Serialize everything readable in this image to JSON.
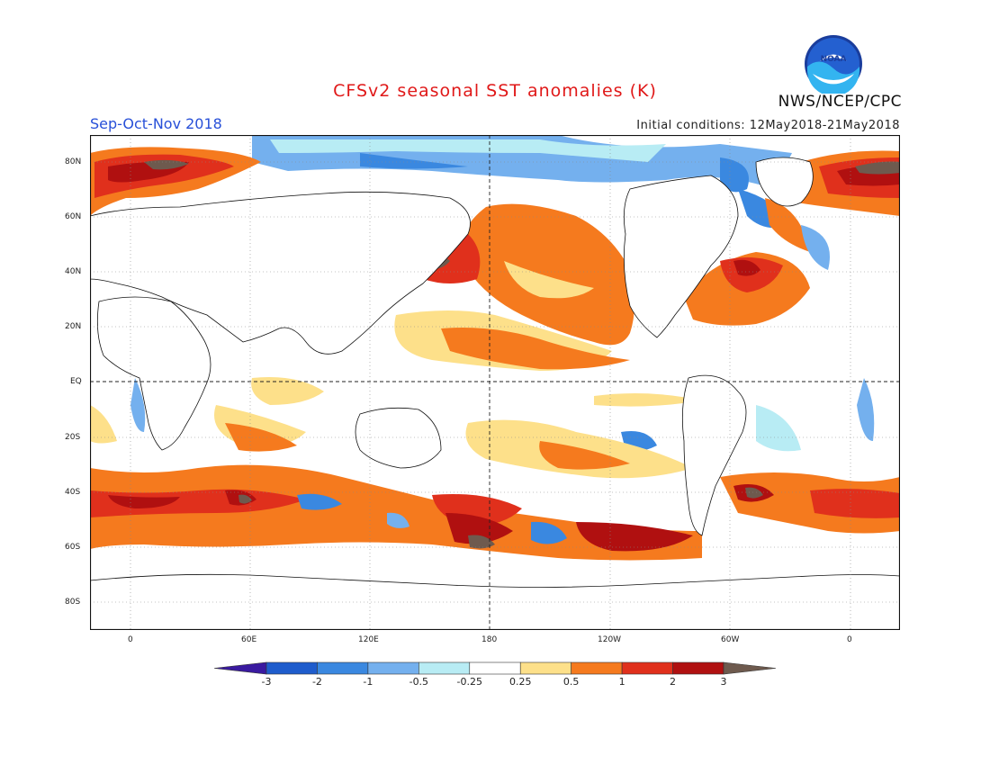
{
  "title": "CFSv2 seasonal SST anomalies (K)",
  "season": "Sep-Oct-Nov 2018",
  "initial_conditions": "Initial conditions: 12May2018-21May2018",
  "agency": "NWS/NCEP/CPC",
  "logo_text": "NOAA",
  "axes": {
    "lat_labels": [
      "80N",
      "60N",
      "40N",
      "20N",
      "EQ",
      "20S",
      "40S",
      "60S",
      "80S"
    ],
    "lon_labels": [
      "0",
      "60E",
      "120E",
      "180",
      "120W",
      "60W",
      "0"
    ]
  },
  "colorbar": {
    "labels": [
      "-3",
      "-2",
      "-1",
      "-0.5",
      "-0.25",
      "0.25",
      "0.5",
      "1",
      "2",
      "3"
    ],
    "colors": [
      "#3a1aa0",
      "#1e5ccc",
      "#3a88e0",
      "#74b0ee",
      "#b8ecf4",
      "#ffffff",
      "#fde08a",
      "#f57a1e",
      "#e0301c",
      "#b01010",
      "#6e5a4e"
    ]
  }
}
